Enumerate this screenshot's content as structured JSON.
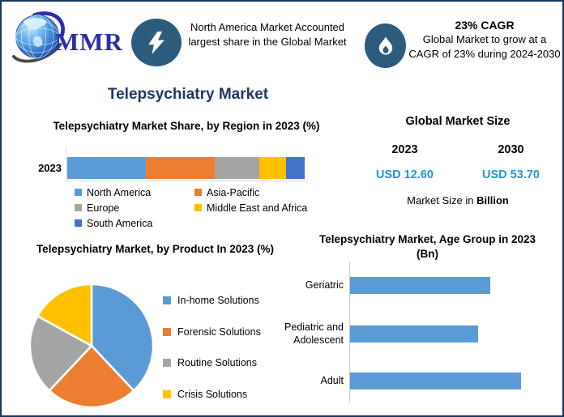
{
  "header": {
    "logo_text": "MMR",
    "left_note": "North America Market Accounted largest share in the Global Market",
    "cagr_title": "23% CAGR",
    "cagr_note": "Global Market to grow at a CAGR of 23% during 2024-2030",
    "icons": [
      "globe-icon",
      "lightning-icon",
      "flame-icon"
    ]
  },
  "main_title": "Telepsychiatry Market",
  "market_size": {
    "title": "Global Market Size",
    "year_start": "2023",
    "year_end": "2030",
    "value_start": "USD 12.60",
    "value_end": "USD 53.70",
    "unit_prefix": "Market Size in ",
    "unit_bold": "Billion"
  },
  "colors": {
    "frame_border": "#17375E",
    "badge_fill": "#2B5C7E",
    "main_title": "#1F3864",
    "usd_value": "#2494D6",
    "bar_blue": "#5B9BD5"
  },
  "chart_data": [
    {
      "type": "bar",
      "variant": "stacked-horizontal",
      "title": "Telepsychiatry Market Share, by Region in 2023 (%)",
      "category": "2023",
      "series": [
        {
          "name": "North America",
          "value": 33,
          "color": "#5B9BD5"
        },
        {
          "name": "Asia-Pacific",
          "value": 29,
          "color": "#ED7D31"
        },
        {
          "name": "Europe",
          "value": 19,
          "color": "#A5A5A5"
        },
        {
          "name": "Middle East and Africa",
          "value": 11,
          "color": "#FFC000"
        },
        {
          "name": "South America",
          "value": 8,
          "color": "#4472C4"
        }
      ],
      "legend_columns": [
        [
          0,
          2,
          4
        ],
        [
          1,
          3
        ]
      ],
      "xlim": [
        0,
        100
      ],
      "note": "segment sizes estimated from bar proportions; no data labels shown"
    },
    {
      "type": "pie",
      "title": "Telepsychiatry Market, by Product In 2023 (%)",
      "slices": [
        {
          "label": "In-home Solutions",
          "value": 38,
          "color": "#5B9BD5"
        },
        {
          "label": "Forensic Solutions",
          "value": 24,
          "color": "#ED7D31"
        },
        {
          "label": "Routine Solutions",
          "value": 21,
          "color": "#A5A5A5"
        },
        {
          "label": "Crisis Solutions",
          "value": 17,
          "color": "#FFC000"
        }
      ],
      "legend_position": "right",
      "note": "slice values estimated from angles; no data labels shown"
    },
    {
      "type": "bar",
      "variant": "horizontal",
      "title": "Telepsychiatry Market, Age Group in 2023 (Bn)",
      "categories": [
        "Geriatric",
        "Pediatric and Adolescent",
        "Adult"
      ],
      "values_relative_to_max": [
        0.82,
        0.75,
        1.0
      ],
      "bar_color": "#5B9BD5",
      "note": "no value-axis tick labels shown; lengths relative to Adult bar"
    }
  ]
}
